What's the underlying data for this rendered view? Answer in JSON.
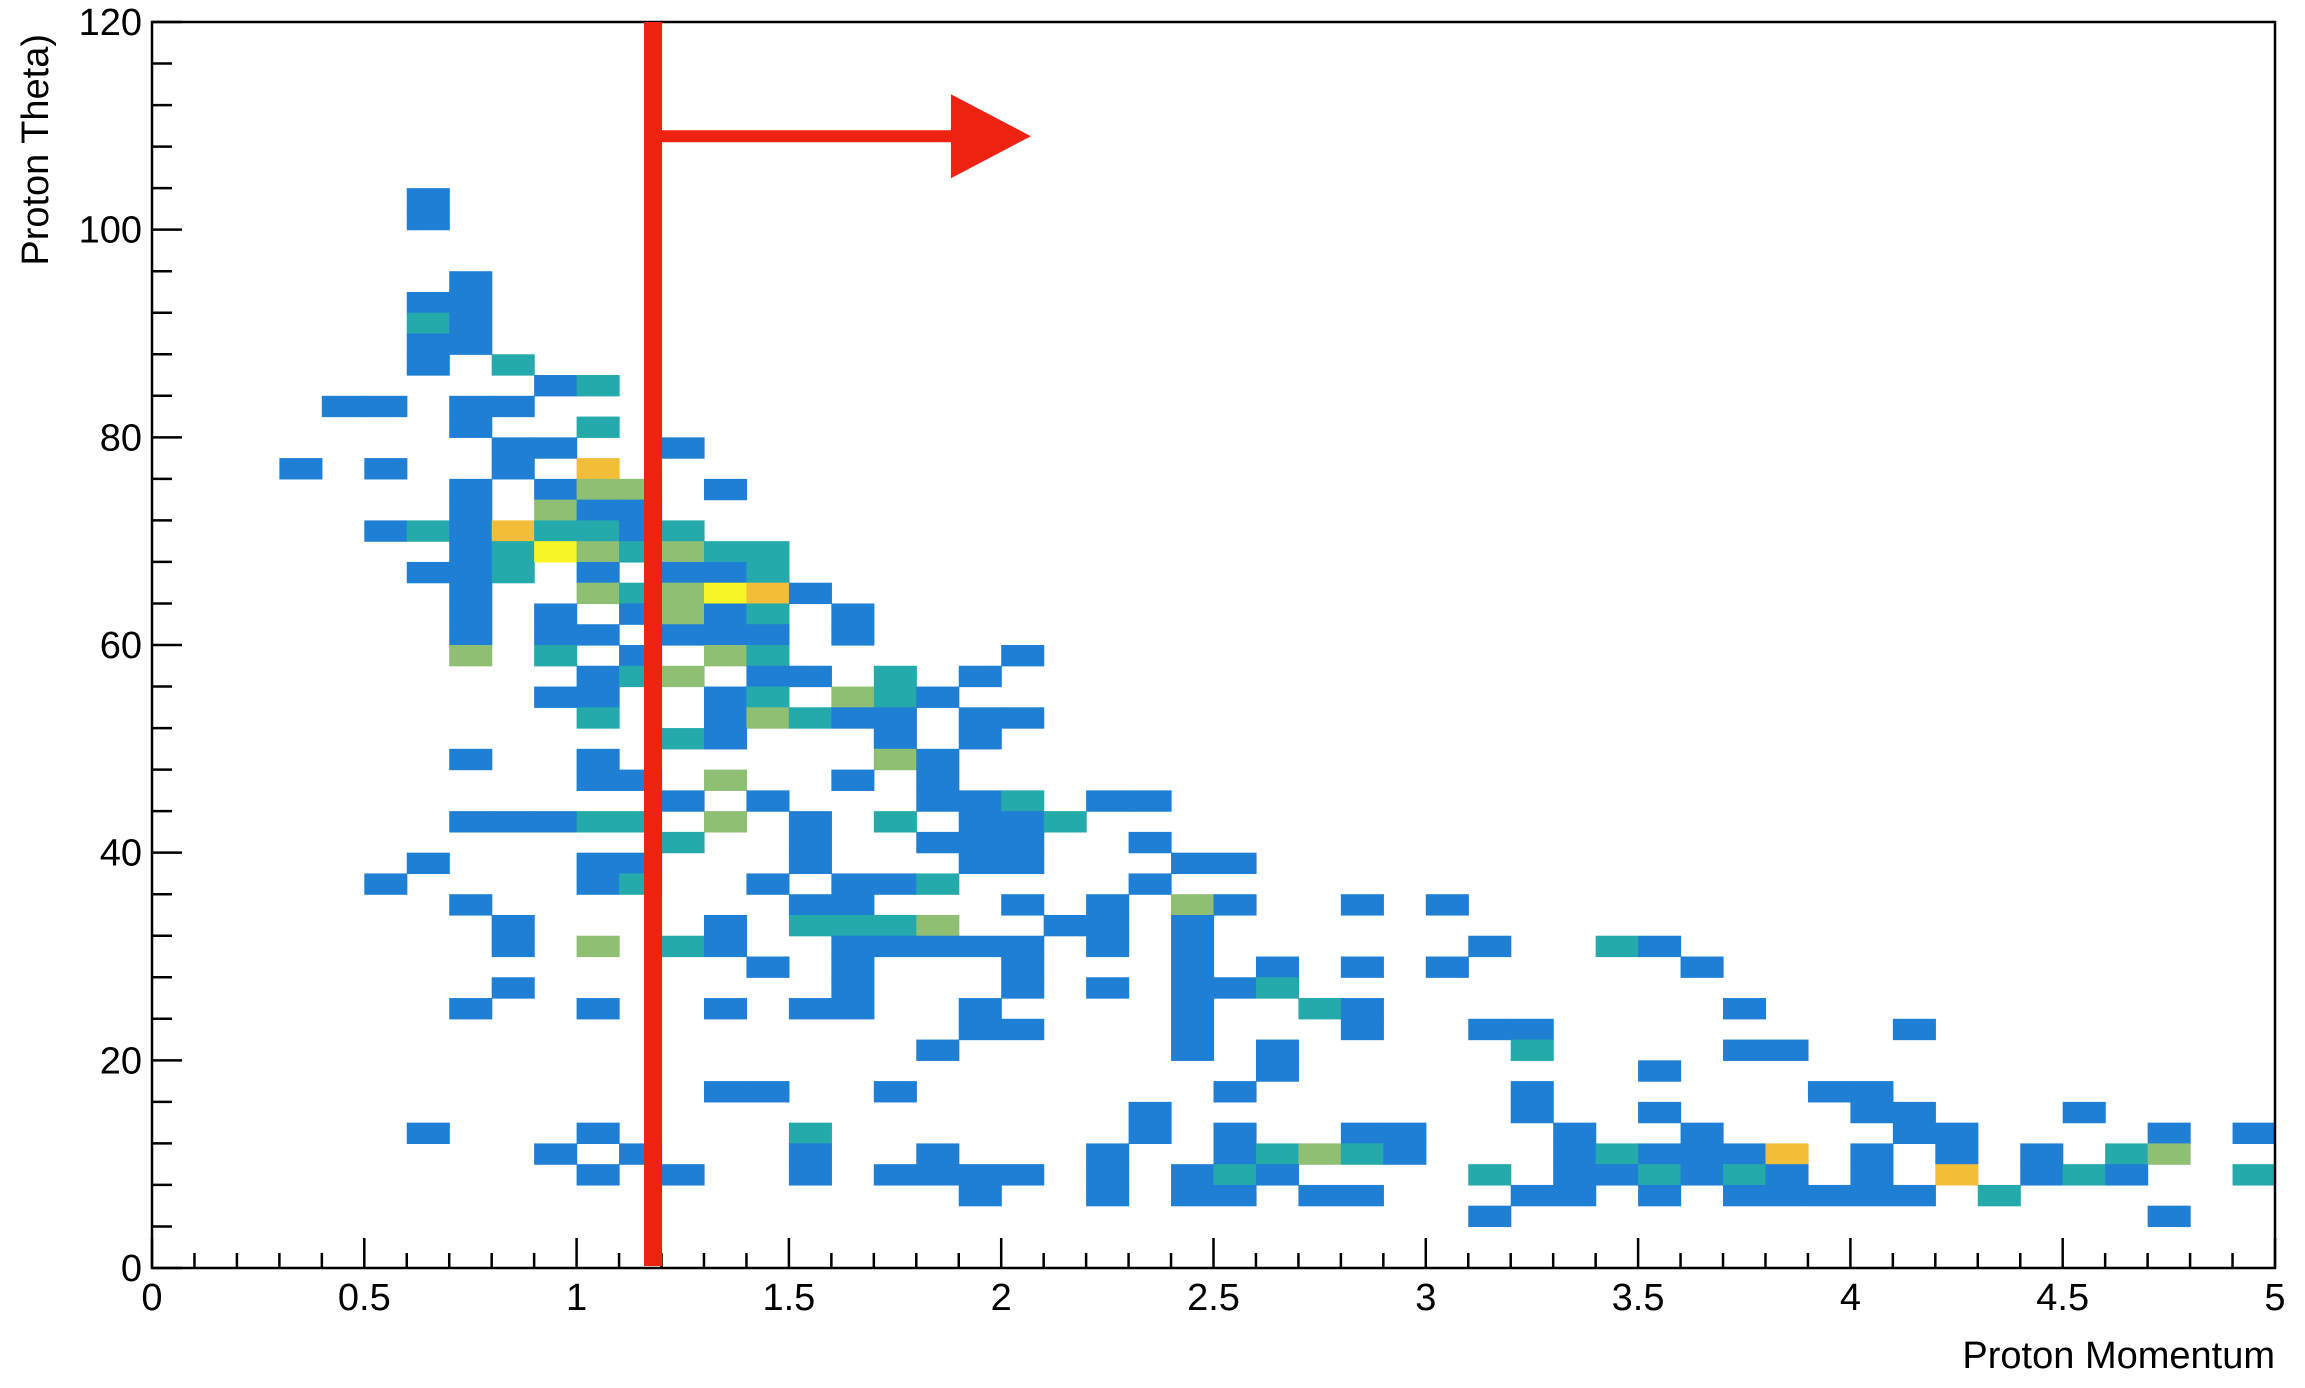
{
  "chart_data": {
    "type": "heatmap",
    "xlabel": "Proton Momentum",
    "ylabel": "Proton Theta)",
    "xlim": [
      0,
      5
    ],
    "ylim": [
      0,
      120
    ],
    "x_ticks": [
      "0",
      "0.5",
      "1",
      "1.5",
      "2",
      "2.5",
      "3",
      "3.5",
      "4",
      "4.5",
      "5"
    ],
    "y_ticks": [
      "0",
      "20",
      "40",
      "60",
      "80",
      "100",
      "120"
    ],
    "bin_width_x": 0.1,
    "bin_width_y": 2,
    "color_levels": {
      "1": "#1f7fd4",
      "2": "#24aaaa",
      "3": "#8fbf73",
      "4": "#f2be3a",
      "5": "#f7f524",
      "6": "#ffffff"
    },
    "cells": [
      [
        0.6,
        102,
        1
      ],
      [
        0.6,
        100,
        1
      ],
      [
        0.7,
        94,
        1
      ],
      [
        0.6,
        92,
        1
      ],
      [
        0.7,
        92,
        1
      ],
      [
        0.6,
        90,
        2
      ],
      [
        0.7,
        90,
        1
      ],
      [
        0.6,
        88,
        1
      ],
      [
        0.7,
        88,
        1
      ],
      [
        0.6,
        86,
        1
      ],
      [
        0.8,
        86,
        2
      ],
      [
        0.9,
        84,
        1
      ],
      [
        1.0,
        84,
        2
      ],
      [
        0.4,
        82,
        1
      ],
      [
        0.5,
        82,
        1
      ],
      [
        0.7,
        82,
        1
      ],
      [
        0.8,
        82,
        1
      ],
      [
        0.7,
        80,
        1
      ],
      [
        1.0,
        80,
        2
      ],
      [
        0.3,
        76,
        1
      ],
      [
        0.5,
        76,
        1
      ],
      [
        0.8,
        78,
        1
      ],
      [
        0.9,
        78,
        1
      ],
      [
        1.2,
        78,
        1
      ],
      [
        0.8,
        76,
        1
      ],
      [
        1.0,
        76,
        4
      ],
      [
        0.7,
        74,
        1
      ],
      [
        0.9,
        74,
        1
      ],
      [
        1.0,
        74,
        3
      ],
      [
        1.1,
        74,
        3
      ],
      [
        1.3,
        74,
        1
      ],
      [
        0.7,
        72,
        1
      ],
      [
        0.9,
        72,
        3
      ],
      [
        1.0,
        72,
        1
      ],
      [
        1.1,
        72,
        1
      ],
      [
        0.5,
        70,
        1
      ],
      [
        0.6,
        70,
        2
      ],
      [
        0.7,
        70,
        1
      ],
      [
        0.8,
        70,
        4
      ],
      [
        0.9,
        70,
        2
      ],
      [
        1.0,
        70,
        2
      ],
      [
        1.1,
        70,
        1
      ],
      [
        1.2,
        70,
        2
      ],
      [
        0.7,
        68,
        1
      ],
      [
        0.8,
        68,
        2
      ],
      [
        0.9,
        68,
        5
      ],
      [
        1.0,
        68,
        3
      ],
      [
        1.1,
        68,
        2
      ],
      [
        1.2,
        68,
        3
      ],
      [
        1.3,
        68,
        2
      ],
      [
        1.4,
        68,
        2
      ],
      [
        0.6,
        66,
        1
      ],
      [
        0.7,
        66,
        1
      ],
      [
        0.8,
        66,
        2
      ],
      [
        1.0,
        66,
        1
      ],
      [
        1.2,
        66,
        1
      ],
      [
        1.3,
        66,
        1
      ],
      [
        1.4,
        66,
        2
      ],
      [
        0.7,
        64,
        1
      ],
      [
        1.0,
        64,
        3
      ],
      [
        1.1,
        64,
        2
      ],
      [
        1.2,
        64,
        3
      ],
      [
        1.3,
        64,
        5
      ],
      [
        1.4,
        64,
        4
      ],
      [
        1.5,
        64,
        1
      ],
      [
        0.7,
        62,
        1
      ],
      [
        0.9,
        62,
        1
      ],
      [
        1.1,
        62,
        1
      ],
      [
        1.2,
        62,
        3
      ],
      [
        1.3,
        62,
        1
      ],
      [
        1.4,
        62,
        2
      ],
      [
        1.6,
        62,
        1
      ],
      [
        0.7,
        60,
        1
      ],
      [
        0.9,
        60,
        1
      ],
      [
        1.0,
        60,
        1
      ],
      [
        1.2,
        60,
        1
      ],
      [
        1.3,
        60,
        1
      ],
      [
        1.4,
        60,
        1
      ],
      [
        1.6,
        60,
        1
      ],
      [
        0.7,
        58,
        3
      ],
      [
        0.9,
        58,
        2
      ],
      [
        1.1,
        58,
        1
      ],
      [
        1.3,
        58,
        3
      ],
      [
        1.4,
        58,
        2
      ],
      [
        2.0,
        58,
        1
      ],
      [
        1.0,
        56,
        1
      ],
      [
        1.1,
        56,
        2
      ],
      [
        1.2,
        56,
        3
      ],
      [
        1.4,
        56,
        1
      ],
      [
        1.5,
        56,
        1
      ],
      [
        1.7,
        56,
        2
      ],
      [
        1.9,
        56,
        1
      ],
      [
        0.9,
        54,
        1
      ],
      [
        1.0,
        54,
        1
      ],
      [
        1.3,
        54,
        1
      ],
      [
        1.4,
        54,
        2
      ],
      [
        1.6,
        54,
        3
      ],
      [
        1.7,
        54,
        2
      ],
      [
        1.8,
        54,
        1
      ],
      [
        1.0,
        52,
        2
      ],
      [
        1.3,
        52,
        1
      ],
      [
        1.4,
        52,
        3
      ],
      [
        1.5,
        52,
        2
      ],
      [
        1.6,
        52,
        1
      ],
      [
        1.7,
        52,
        1
      ],
      [
        1.9,
        52,
        1
      ],
      [
        2.0,
        52,
        1
      ],
      [
        1.2,
        50,
        2
      ],
      [
        1.3,
        50,
        1
      ],
      [
        1.7,
        50,
        1
      ],
      [
        1.9,
        50,
        1
      ],
      [
        0.7,
        48,
        1
      ],
      [
        1.0,
        48,
        1
      ],
      [
        1.7,
        48,
        3
      ],
      [
        1.8,
        48,
        1
      ],
      [
        1.0,
        46,
        1
      ],
      [
        1.1,
        46,
        1
      ],
      [
        1.3,
        46,
        3
      ],
      [
        1.6,
        46,
        1
      ],
      [
        1.8,
        46,
        1
      ],
      [
        1.2,
        44,
        1
      ],
      [
        1.4,
        44,
        1
      ],
      [
        1.8,
        44,
        1
      ],
      [
        1.9,
        44,
        1
      ],
      [
        2.0,
        44,
        2
      ],
      [
        2.2,
        44,
        1
      ],
      [
        2.3,
        44,
        1
      ],
      [
        0.7,
        42,
        1
      ],
      [
        0.8,
        42,
        1
      ],
      [
        0.9,
        42,
        1
      ],
      [
        1.0,
        42,
        2
      ],
      [
        1.1,
        42,
        2
      ],
      [
        1.3,
        42,
        3
      ],
      [
        1.5,
        42,
        1
      ],
      [
        1.7,
        42,
        2
      ],
      [
        1.9,
        42,
        1
      ],
      [
        2.0,
        42,
        1
      ],
      [
        2.1,
        42,
        2
      ],
      [
        1.2,
        40,
        2
      ],
      [
        1.5,
        40,
        1
      ],
      [
        1.8,
        40,
        1
      ],
      [
        1.9,
        40,
        1
      ],
      [
        2.0,
        40,
        1
      ],
      [
        2.3,
        40,
        1
      ],
      [
        0.6,
        38,
        1
      ],
      [
        1.0,
        38,
        1
      ],
      [
        1.1,
        38,
        1
      ],
      [
        1.5,
        38,
        1
      ],
      [
        1.9,
        38,
        1
      ],
      [
        2.0,
        38,
        1
      ],
      [
        2.4,
        38,
        1
      ],
      [
        2.5,
        38,
        1
      ],
      [
        0.5,
        36,
        1
      ],
      [
        1.0,
        36,
        1
      ],
      [
        1.1,
        36,
        2
      ],
      [
        1.4,
        36,
        1
      ],
      [
        1.6,
        36,
        1
      ],
      [
        1.7,
        36,
        1
      ],
      [
        1.8,
        36,
        2
      ],
      [
        2.3,
        36,
        1
      ],
      [
        0.7,
        34,
        1
      ],
      [
        1.5,
        34,
        1
      ],
      [
        1.6,
        34,
        1
      ],
      [
        2.0,
        34,
        1
      ],
      [
        2.2,
        34,
        1
      ],
      [
        2.4,
        34,
        3
      ],
      [
        2.5,
        34,
        1
      ],
      [
        2.8,
        34,
        1
      ],
      [
        3.0,
        34,
        1
      ],
      [
        0.8,
        32,
        1
      ],
      [
        1.3,
        32,
        1
      ],
      [
        1.5,
        32,
        2
      ],
      [
        1.6,
        32,
        2
      ],
      [
        1.7,
        32,
        2
      ],
      [
        1.8,
        32,
        3
      ],
      [
        2.1,
        32,
        1
      ],
      [
        2.2,
        32,
        1
      ],
      [
        2.4,
        32,
        1
      ],
      [
        0.8,
        30,
        1
      ],
      [
        1.0,
        30,
        3
      ],
      [
        1.2,
        30,
        2
      ],
      [
        1.3,
        30,
        1
      ],
      [
        1.6,
        30,
        1
      ],
      [
        1.7,
        30,
        1
      ],
      [
        1.8,
        30,
        1
      ],
      [
        1.9,
        30,
        1
      ],
      [
        2.0,
        30,
        1
      ],
      [
        2.2,
        30,
        1
      ],
      [
        2.4,
        30,
        1
      ],
      [
        3.1,
        30,
        1
      ],
      [
        3.4,
        30,
        2
      ],
      [
        3.5,
        30,
        1
      ],
      [
        1.4,
        28,
        1
      ],
      [
        1.6,
        28,
        1
      ],
      [
        2.0,
        28,
        1
      ],
      [
        2.4,
        28,
        1
      ],
      [
        2.6,
        28,
        1
      ],
      [
        2.8,
        28,
        1
      ],
      [
        3.0,
        28,
        1
      ],
      [
        3.6,
        28,
        1
      ],
      [
        0.8,
        26,
        1
      ],
      [
        1.6,
        26,
        1
      ],
      [
        2.0,
        26,
        1
      ],
      [
        2.2,
        26,
        1
      ],
      [
        2.4,
        26,
        1
      ],
      [
        2.5,
        26,
        1
      ],
      [
        2.6,
        26,
        2
      ],
      [
        0.7,
        24,
        1
      ],
      [
        1.0,
        24,
        1
      ],
      [
        1.3,
        24,
        1
      ],
      [
        1.5,
        24,
        1
      ],
      [
        1.6,
        24,
        1
      ],
      [
        1.9,
        24,
        1
      ],
      [
        2.4,
        24,
        1
      ],
      [
        2.7,
        24,
        2
      ],
      [
        2.8,
        24,
        1
      ],
      [
        3.7,
        24,
        1
      ],
      [
        1.9,
        22,
        1
      ],
      [
        2.0,
        22,
        1
      ],
      [
        2.4,
        22,
        1
      ],
      [
        2.8,
        22,
        1
      ],
      [
        3.1,
        22,
        1
      ],
      [
        3.2,
        22,
        1
      ],
      [
        4.1,
        22,
        1
      ],
      [
        1.8,
        20,
        1
      ],
      [
        2.4,
        20,
        1
      ],
      [
        2.6,
        20,
        1
      ],
      [
        3.2,
        20,
        2
      ],
      [
        3.7,
        20,
        1
      ],
      [
        3.8,
        20,
        1
      ],
      [
        2.6,
        18,
        1
      ],
      [
        3.5,
        18,
        1
      ],
      [
        1.3,
        16,
        1
      ],
      [
        1.4,
        16,
        1
      ],
      [
        1.7,
        16,
        1
      ],
      [
        2.5,
        16,
        1
      ],
      [
        3.2,
        16,
        1
      ],
      [
        3.9,
        16,
        1
      ],
      [
        4.0,
        16,
        1
      ],
      [
        2.3,
        14,
        1
      ],
      [
        3.2,
        14,
        1
      ],
      [
        3.5,
        14,
        1
      ],
      [
        4.0,
        14,
        1
      ],
      [
        4.1,
        14,
        1
      ],
      [
        4.5,
        14,
        1
      ],
      [
        0.6,
        12,
        1
      ],
      [
        1.0,
        12,
        1
      ],
      [
        1.5,
        12,
        2
      ],
      [
        2.3,
        12,
        1
      ],
      [
        2.5,
        12,
        1
      ],
      [
        2.8,
        12,
        1
      ],
      [
        2.9,
        12,
        1
      ],
      [
        3.3,
        12,
        1
      ],
      [
        3.6,
        12,
        1
      ],
      [
        4.1,
        12,
        1
      ],
      [
        4.2,
        12,
        1
      ],
      [
        4.7,
        12,
        1
      ],
      [
        4.9,
        12,
        1
      ],
      [
        0.9,
        10,
        1
      ],
      [
        1.1,
        10,
        1
      ],
      [
        1.5,
        10,
        1
      ],
      [
        1.8,
        10,
        1
      ],
      [
        2.2,
        10,
        1
      ],
      [
        2.5,
        10,
        1
      ],
      [
        2.6,
        10,
        2
      ],
      [
        2.7,
        10,
        3
      ],
      [
        2.8,
        10,
        2
      ],
      [
        2.9,
        10,
        1
      ],
      [
        3.3,
        10,
        1
      ],
      [
        3.4,
        10,
        2
      ],
      [
        3.5,
        10,
        1
      ],
      [
        3.6,
        10,
        1
      ],
      [
        3.7,
        10,
        1
      ],
      [
        3.8,
        10,
        4
      ],
      [
        4.0,
        10,
        1
      ],
      [
        4.2,
        10,
        1
      ],
      [
        4.4,
        10,
        1
      ],
      [
        4.6,
        10,
        2
      ],
      [
        4.7,
        10,
        3
      ],
      [
        1.0,
        8,
        1
      ],
      [
        1.2,
        8,
        1
      ],
      [
        1.5,
        8,
        1
      ],
      [
        1.7,
        8,
        1
      ],
      [
        1.8,
        8,
        1
      ],
      [
        1.9,
        8,
        1
      ],
      [
        2.0,
        8,
        1
      ],
      [
        2.2,
        8,
        1
      ],
      [
        2.4,
        8,
        1
      ],
      [
        2.5,
        8,
        2
      ],
      [
        2.6,
        8,
        1
      ],
      [
        3.1,
        8,
        2
      ],
      [
        3.3,
        8,
        1
      ],
      [
        3.4,
        8,
        1
      ],
      [
        3.5,
        8,
        2
      ],
      [
        3.6,
        8,
        1
      ],
      [
        3.7,
        8,
        2
      ],
      [
        3.8,
        8,
        1
      ],
      [
        4.0,
        8,
        1
      ],
      [
        4.2,
        8,
        4
      ],
      [
        4.4,
        8,
        1
      ],
      [
        4.5,
        8,
        2
      ],
      [
        4.6,
        8,
        1
      ],
      [
        4.9,
        8,
        2
      ],
      [
        1.9,
        6,
        1
      ],
      [
        2.2,
        6,
        1
      ],
      [
        2.4,
        6,
        1
      ],
      [
        2.5,
        6,
        1
      ],
      [
        2.7,
        6,
        1
      ],
      [
        2.8,
        6,
        1
      ],
      [
        3.2,
        6,
        1
      ],
      [
        3.3,
        6,
        1
      ],
      [
        3.5,
        6,
        1
      ],
      [
        3.7,
        6,
        1
      ],
      [
        3.8,
        6,
        1
      ],
      [
        3.9,
        6,
        1
      ],
      [
        4.0,
        6,
        1
      ],
      [
        4.1,
        6,
        1
      ],
      [
        4.3,
        6,
        2
      ],
      [
        3.1,
        4,
        1
      ],
      [
        4.7,
        4,
        1
      ]
    ],
    "annotation": {
      "type": "cut-line-arrow",
      "cut_x": 1.18,
      "arrow_from_x": 1.18,
      "arrow_to_x": 2.07,
      "arrow_y": 109,
      "color": "#ee2211"
    }
  }
}
